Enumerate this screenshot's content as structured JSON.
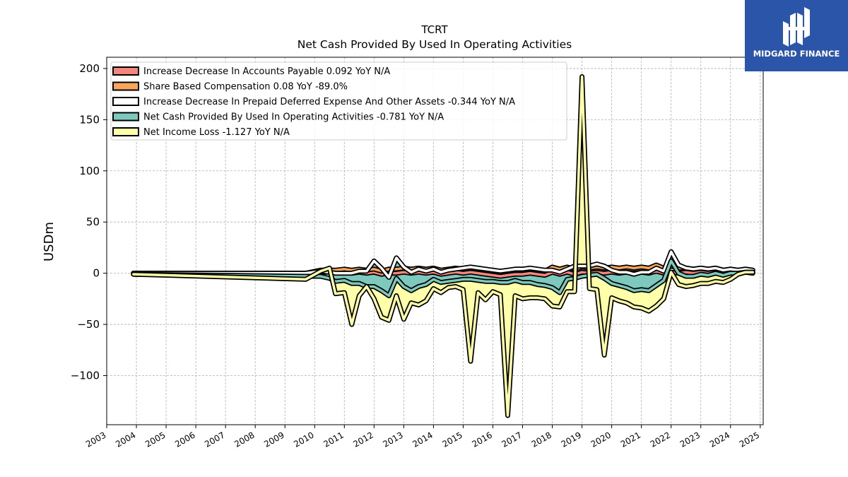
{
  "brand": {
    "name": "MIDGARD FINANCE",
    "bg_color": "#2a55a8"
  },
  "chart_data": {
    "type": "area",
    "title": "TCRT",
    "subtitle": "Net Cash Provided By Used In Operating Activities",
    "ylabel": "USDm",
    "xlabel": "",
    "xlim": [
      2003,
      2025.1
    ],
    "ylim": [
      -148,
      211
    ],
    "yticks": [
      200,
      150,
      100,
      50,
      0,
      -50,
      -100
    ],
    "ytick_labels": [
      "200",
      "150",
      "100",
      "50",
      "0",
      "−50",
      "−100"
    ],
    "xticks": [
      2003,
      2004,
      2005,
      2006,
      2007,
      2008,
      2009,
      2010,
      2011,
      2012,
      2013,
      2014,
      2015,
      2016,
      2017,
      2018,
      2019,
      2020,
      2021,
      2022,
      2023,
      2024,
      2025
    ],
    "xtick_labels": [
      "2003",
      "2004",
      "2005",
      "2006",
      "2007",
      "2008",
      "2009",
      "2010",
      "2011",
      "2012",
      "2013",
      "2014",
      "2015",
      "2016",
      "2017",
      "2018",
      "2019",
      "2020",
      "2021",
      "2022",
      "2023",
      "2024",
      "2025"
    ],
    "grid": true,
    "legend_position": "top-left",
    "x": [
      2003.9,
      2009.7,
      2010.2,
      2010.5,
      2010.7,
      2011.0,
      2011.25,
      2011.5,
      2011.75,
      2012.0,
      2012.25,
      2012.5,
      2012.75,
      2013.0,
      2013.25,
      2013.5,
      2013.75,
      2014.0,
      2014.25,
      2014.5,
      2014.75,
      2015.0,
      2015.25,
      2015.5,
      2015.75,
      2016.0,
      2016.25,
      2016.5,
      2016.75,
      2017.0,
      2017.25,
      2017.5,
      2017.75,
      2018.0,
      2018.25,
      2018.5,
      2018.75,
      2019.0,
      2019.25,
      2019.5,
      2019.75,
      2020.0,
      2020.25,
      2020.5,
      2020.75,
      2021.0,
      2021.25,
      2021.5,
      2021.75,
      2022.0,
      2022.25,
      2022.5,
      2022.75,
      2023.0,
      2023.25,
      2023.5,
      2023.75,
      2024.0,
      2024.25,
      2024.5,
      2024.75
    ],
    "series": [
      {
        "name": "Increase Decrease In Accounts Payable",
        "legend": "Increase Decrease In Accounts Payable  0.092 YoY N/A",
        "color": "#f4877b",
        "values": [
          0,
          0,
          1,
          1,
          0,
          1,
          0,
          1,
          0,
          1,
          -1,
          0,
          0,
          1,
          0,
          1,
          0,
          1,
          -1,
          0,
          1,
          0,
          1,
          0,
          -1,
          -2,
          -3,
          -2,
          -1,
          -1,
          0,
          -1,
          -2,
          1,
          -1,
          1,
          -1,
          1,
          0,
          1,
          0,
          1,
          0,
          1,
          0,
          1,
          0,
          2,
          0,
          1,
          0,
          1,
          0,
          1,
          0,
          1,
          0,
          1,
          0,
          1,
          0
        ]
      },
      {
        "name": "Share Based Compensation",
        "legend": "Share Based Compensation  0.08 YoY -89.0%",
        "color": "#f9a65a",
        "values": [
          0,
          0,
          2,
          2,
          3,
          3,
          3,
          3,
          3,
          3,
          3,
          4,
          4,
          4,
          4,
          4,
          4,
          4,
          4,
          4,
          4,
          4,
          4,
          4,
          4,
          4,
          4,
          4,
          4,
          4,
          4,
          4,
          4,
          5,
          5,
          5,
          5,
          5,
          5,
          5,
          5,
          5,
          5,
          5,
          5,
          5,
          5,
          6,
          5,
          6,
          5,
          4,
          4,
          4,
          4,
          4,
          3,
          3,
          3,
          3,
          3
        ]
      },
      {
        "name": "Increase Decrease In Prepaid Deferred Expense And Other Assets",
        "legend": "Increase Decrease In Prepaid Deferred Expense And Other Assets  -0.344 YoY N/A",
        "color": "#ffffff",
        "values": [
          0,
          0,
          -1,
          -2,
          -3,
          -4,
          -3,
          -2,
          -1,
          8,
          3,
          -8,
          11,
          1,
          -3,
          -1,
          -2,
          -1,
          -2,
          -1,
          -1,
          1,
          1,
          1,
          1,
          1,
          1,
          1,
          1,
          1,
          1,
          1,
          1,
          -3,
          -3,
          -2,
          3,
          1,
          2,
          3,
          2,
          -3,
          -4,
          -5,
          -6,
          -5,
          -4,
          -3,
          -3,
          14,
          3,
          0,
          0,
          0,
          0,
          0,
          0,
          0,
          0,
          0,
          0
        ]
      },
      {
        "name": "Net Cash Provided By Used In Operating Activities",
        "legend": "Net Cash Provided By Used In Operating Activities  -0.781 YoY N/A",
        "color": "#7dc9bd",
        "values": [
          -1,
          -3,
          -5,
          -6,
          -8,
          -7,
          -10,
          -12,
          -15,
          -25,
          -22,
          -18,
          -20,
          -19,
          -18,
          -17,
          -13,
          -10,
          -10,
          -11,
          -11,
          -11,
          -12,
          -12,
          -12,
          -11,
          -11,
          -12,
          -11,
          -13,
          -14,
          -15,
          -15,
          -17,
          -20,
          -10,
          -12,
          -10,
          -9,
          -10,
          -12,
          -13,
          -13,
          -15,
          -16,
          -17,
          -18,
          -17,
          -9,
          -9,
          -8,
          -8,
          -7,
          -6,
          -6,
          -5,
          -5,
          -4,
          -3,
          -3,
          -2
        ]
      },
      {
        "name": "Net Income Loss",
        "legend": "Net Income Loss  -1.127 YoY N/A",
        "color": "#ffffaa",
        "values": [
          0,
          -3,
          5,
          10,
          -12,
          -12,
          -40,
          -12,
          0,
          -12,
          -26,
          -24,
          -17,
          -32,
          -12,
          -18,
          -16,
          -9,
          -10,
          -6,
          -6,
          -10,
          -80,
          -12,
          -18,
          -10,
          -12,
          -130,
          -15,
          -16,
          -15,
          -13,
          -13,
          -18,
          -14,
          -12,
          -13,
          195,
          -13,
          -15,
          -75,
          -14,
          -15,
          -15,
          -16,
          -18,
          -20,
          -20,
          -18,
          -11,
          -11,
          -10,
          -9,
          -9,
          -8,
          -8,
          -7,
          -6,
          -1,
          0,
          0
        ]
      }
    ]
  }
}
